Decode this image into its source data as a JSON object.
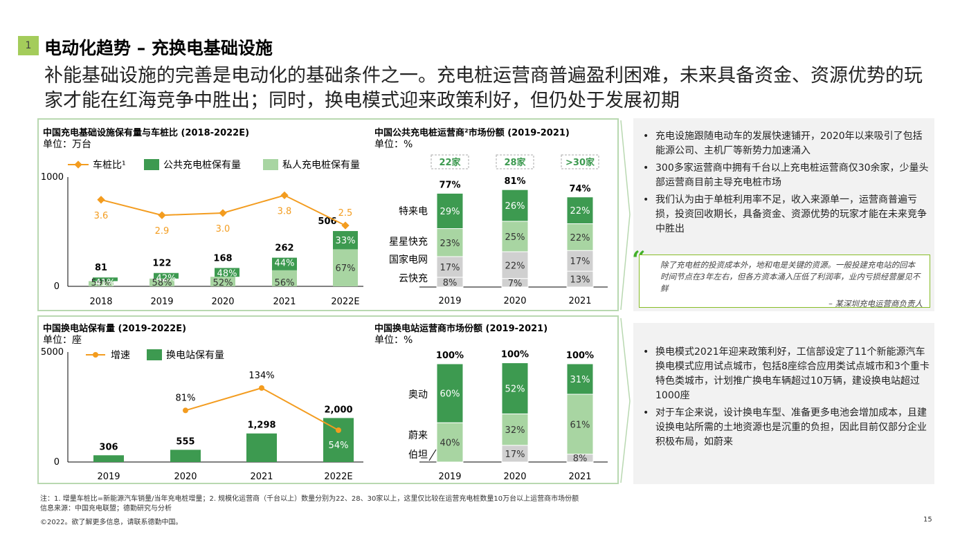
{
  "header": {
    "badge": "1",
    "title": "电动化趋势 – 充换电基础设施",
    "subtitle": "补能基础设施的完善是电动化的基础条件之一。充电桩运营商普遍盈利困难，未来具备资金、资源优势的玩家才能在红海竞争中胜出；同时，换电模式迎来政策利好，但仍处于发展初期"
  },
  "colors": {
    "dark_green": "#3d9a50",
    "light_green": "#a8d5a2",
    "gray": "#d0d0d0",
    "orange": "#f39c1f",
    "accent": "#86bc25"
  },
  "chart_data": [
    {
      "id": "chart1",
      "type": "bar",
      "title": "中国充电基础设施保有量与车桩比 (2018-2022E)",
      "unit": "单位：万台",
      "categories": [
        "2018",
        "2019",
        "2020",
        "2021",
        "2022E"
      ],
      "totals": [
        "81",
        "122",
        "168",
        "262",
        "506"
      ],
      "ylim": [
        0,
        1000
      ],
      "yticks": [
        "0",
        "1000"
      ],
      "legend": [
        "车桩比¹",
        "公共充电桩保有量",
        "私人充电桩保有量"
      ],
      "series": [
        {
          "name": "私人充电桩保有量",
          "share_labels": [
            "59%",
            "58%",
            "52%",
            "56%",
            "67%"
          ]
        },
        {
          "name": "公共充电桩保有量",
          "share_labels": [
            "41%",
            "42%",
            "48%",
            "44%",
            "33%"
          ]
        }
      ],
      "line": {
        "name": "车桩比¹",
        "values": [
          3.6,
          2.9,
          3.0,
          3.8,
          2.5
        ],
        "labels": [
          "3.6",
          "2.9",
          "3.0",
          "3.8",
          "2.5"
        ]
      }
    },
    {
      "id": "chart2",
      "type": "bar",
      "title": "中国公共充电桩运营商²市场份额 (2019-2021)",
      "unit": "单位：%",
      "categories": [
        "2019",
        "2020",
        "2021"
      ],
      "headers": [
        "22家",
        "28家",
        ">30家"
      ],
      "totals": [
        "77%",
        "81%",
        "74%"
      ],
      "row_labels": [
        "特来电",
        "星星快充",
        "国家电网",
        "云快充"
      ],
      "series": [
        {
          "name": "云快充",
          "values": [
            8,
            7,
            13
          ],
          "labels": [
            "8%",
            "7%",
            "13%"
          ]
        },
        {
          "name": "国家电网",
          "values": [
            17,
            22,
            17
          ],
          "labels": [
            "17%",
            "22%",
            "17%"
          ]
        },
        {
          "name": "星星快充",
          "values": [
            23,
            25,
            22
          ],
          "labels": [
            "23%",
            "25%",
            "22%"
          ]
        },
        {
          "name": "特来电",
          "values": [
            29,
            26,
            22
          ],
          "labels": [
            "29%",
            "26%",
            "22%"
          ]
        }
      ]
    },
    {
      "id": "chart3",
      "type": "bar",
      "title": "中国换电站保有量 (2019-2022E)",
      "unit": "单位：座",
      "categories": [
        "2019",
        "2020",
        "2021",
        "2022E"
      ],
      "values": [
        306,
        555,
        1298,
        2000
      ],
      "value_labels": [
        "306",
        "555",
        "1,298",
        "2,000"
      ],
      "ylim": [
        0,
        5000
      ],
      "yticks": [
        "0",
        "5000"
      ],
      "legend": [
        "增速",
        "换电站保有量"
      ],
      "line": {
        "name": "增速",
        "values": [
          81,
          134,
          54
        ],
        "labels": [
          "81%",
          "134%",
          "54%"
        ]
      }
    },
    {
      "id": "chart4",
      "type": "bar",
      "title": "中国换电站运营商市场份额 (2019-2021)",
      "unit": "单位：%",
      "categories": [
        "2019",
        "2020",
        "2021"
      ],
      "totals": [
        "100%",
        "100%",
        "100%"
      ],
      "row_labels": [
        "奥动",
        "蔚来",
        "伯坦"
      ],
      "series": [
        {
          "name": "伯坦",
          "values": [
            0,
            17,
            8
          ],
          "labels": [
            "",
            "17%",
            "8%"
          ]
        },
        {
          "name": "蔚来",
          "values": [
            40,
            32,
            61
          ],
          "labels": [
            "40%",
            "32%",
            "61%"
          ]
        },
        {
          "name": "奥动",
          "values": [
            60,
            52,
            31
          ],
          "labels": [
            "60%",
            "52%",
            "31%"
          ]
        }
      ]
    }
  ],
  "right_top": {
    "bullets": [
      "充电设施跟随电动车的发展快速铺开，2020年以来吸引了包括能源公司、主机厂等新势力加速涌入",
      "300多家运营商中拥有千台以上充电桩运营商仅30余家，少量头部运营商目前主导充电桩市场",
      "我们认为由于单桩利用率不足，收入来源单一，运营商普遍亏损，投资回收期长，具备资金、资源优势的玩家才能在未来竞争中胜出"
    ],
    "quote_mark": "“",
    "quote": "除了充电桩的投资成本外，地和电是关键的资源。一般投建充电站的回本时间节点在3年左右，但各方资本涌入压低了利润率，业内亏损经营屡见不鲜",
    "quote_source": "– 某深圳充电运营商负责人"
  },
  "right_bottom": {
    "bullets": [
      "换电模式2021年迎来政策利好，工信部设定了11个新能源汽车换电模式应用试点城市，包括8座综合应用类试点城市和3个重卡特色类城市，计划推广换电车辆超过10万辆，建设换电站超过1000座",
      "对于车企来说，设计换电车型、准备更多电池会增加成本，且建设换电站所需的土地资源也是沉重的负担，因此目前仅部分企业积极布局，如蔚来"
    ]
  },
  "footer": {
    "note": "注：1. 增量车桩比=新能源汽车销量/当年充电桩增量；2. 规模化运营商（千台以上）数量分别为22、28、30家以上，这里仅比较在运营充电桩数量10万台以上运营商市场份额",
    "source": "信息来源：中国充电联盟；德勤研究与分析",
    "copyright": "©2022。欲了解更多信息，请联系德勤中国。",
    "page": "15"
  }
}
